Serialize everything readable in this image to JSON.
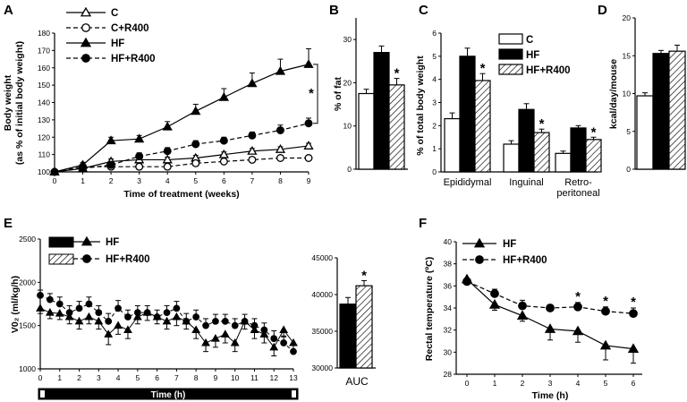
{
  "chart_data": [
    {
      "panel": "A",
      "type": "line",
      "xlabel": "Time of treatment (weeks)",
      "ylabel_line1": "Body weight",
      "ylabel_line2": "(as % of initial body weight)",
      "xlim": [
        0,
        9
      ],
      "ylim": [
        100,
        180
      ],
      "xticks": [
        "0",
        "1",
        "2",
        "3",
        "4",
        "5",
        "6",
        "7",
        "8",
        "9"
      ],
      "yticks": [
        "100",
        "110",
        "120",
        "130",
        "140",
        "150",
        "160",
        "170",
        "180"
      ],
      "x": [
        0,
        1,
        2,
        3,
        4,
        5,
        6,
        7,
        8,
        9
      ],
      "series": [
        {
          "name": "C",
          "marker": "triangle-open",
          "dash": false,
          "values": [
            100,
            102,
            106,
            107,
            107,
            108,
            110,
            112,
            113,
            115
          ],
          "err": [
            0.5,
            1.2,
            1.5,
            1.5,
            1.5,
            1.5,
            1.5,
            1.5,
            1.5,
            1.5
          ]
        },
        {
          "name": "C+R400",
          "marker": "circle-open",
          "dash": true,
          "values": [
            100,
            103,
            103,
            103,
            103,
            105,
            106,
            107,
            108,
            108
          ],
          "err": [
            0.5,
            1.5,
            1.5,
            1.5,
            1.5,
            1.5,
            1.5,
            1.5,
            1.5,
            1.5
          ]
        },
        {
          "name": "HF",
          "marker": "triangle-filled",
          "dash": false,
          "values": [
            100,
            104,
            118,
            119,
            126,
            135,
            143,
            151,
            158,
            162
          ],
          "err": [
            0.5,
            1.5,
            2,
            2,
            3,
            4,
            5,
            6,
            7,
            9
          ]
        },
        {
          "name": "HF+R400",
          "marker": "circle-filled",
          "dash": true,
          "values": [
            100,
            102,
            104,
            109,
            112,
            116,
            118,
            121,
            124,
            128
          ],
          "err": [
            0.5,
            1.5,
            2,
            2,
            2,
            2,
            2,
            2,
            3,
            3
          ]
        }
      ],
      "star": "*"
    },
    {
      "panel": "B",
      "type": "bar",
      "ylabel": "% of fat",
      "ylim": [
        0,
        35
      ],
      "yticks": [
        "0",
        "10",
        "20",
        "30"
      ],
      "series": [
        {
          "name": "C",
          "fill": "white",
          "value": 17.5,
          "err": 1.0
        },
        {
          "name": "HF",
          "fill": "black",
          "value": 27,
          "err": 1.5
        },
        {
          "name": "HF+R400",
          "fill": "hatch",
          "value": 19.5,
          "err": 1.5,
          "star": "*"
        }
      ]
    },
    {
      "panel": "C",
      "type": "bar",
      "ylabel": "% of total body weight",
      "ylim": [
        0,
        6
      ],
      "yticks": [
        "0",
        "1",
        "2",
        "3",
        "4",
        "5",
        "6"
      ],
      "categories": [
        "Epididymal",
        "Inguinal",
        "Retro-\nperitoneal"
      ],
      "series": [
        {
          "name": "C",
          "fill": "white",
          "values": [
            2.3,
            1.2,
            0.8
          ],
          "err": [
            0.25,
            0.15,
            0.1
          ]
        },
        {
          "name": "HF",
          "fill": "black",
          "values": [
            5.0,
            2.7,
            1.9
          ],
          "err": [
            0.35,
            0.25,
            0.1
          ]
        },
        {
          "name": "HF+R400",
          "fill": "hatch",
          "values": [
            3.95,
            1.7,
            1.4
          ],
          "err": [
            0.3,
            0.15,
            0.1
          ]
        }
      ],
      "stars": [
        "*",
        "*",
        "*"
      ]
    },
    {
      "panel": "D",
      "type": "bar",
      "ylabel": "kcal/day/mouse",
      "ylim": [
        0,
        20
      ],
      "yticks": [
        "0",
        "5",
        "10",
        "15",
        "20"
      ],
      "series": [
        {
          "name": "C",
          "fill": "white",
          "value": 9.7,
          "err": 0.4
        },
        {
          "name": "HF",
          "fill": "black",
          "value": 15.3,
          "err": 0.4
        },
        {
          "name": "HF+R400",
          "fill": "hatch",
          "value": 15.6,
          "err": 0.8
        }
      ]
    },
    {
      "panel": "E",
      "type": "scatter",
      "xlabel": "Time (h)",
      "ylabel": "V0₂ (ml/kg/h)",
      "xlim": [
        0,
        13
      ],
      "ylim": [
        1000,
        2500
      ],
      "xticks": [
        "0",
        "1",
        "2",
        "3",
        "4",
        "5",
        "6",
        "7",
        "8",
        "9",
        "10",
        "11",
        "12",
        "13"
      ],
      "yticks": [
        "1000",
        "1500",
        "2000",
        "2500"
      ],
      "x": [
        0,
        0.5,
        1,
        1.5,
        2,
        2.5,
        3,
        3.5,
        4,
        4.5,
        5,
        5.5,
        6,
        6.5,
        7,
        7.5,
        8,
        8.5,
        9,
        9.5,
        10,
        10.5,
        11,
        11.5,
        12,
        12.5,
        13
      ],
      "series": [
        {
          "name": "HF",
          "marker": "triangle-filled",
          "dash": false,
          "values": [
            1700,
            1650,
            1640,
            1600,
            1550,
            1600,
            1550,
            1400,
            1500,
            1450,
            1600,
            1650,
            1600,
            1550,
            1600,
            1550,
            1450,
            1300,
            1350,
            1400,
            1300,
            1550,
            1450,
            1400,
            1250,
            1450,
            1300
          ],
          "err": [
            60,
            70,
            70,
            80,
            90,
            80,
            90,
            120,
            100,
            100,
            80,
            90,
            80,
            90,
            100,
            90,
            100,
            100,
            100,
            100,
            100,
            90,
            100,
            100,
            100,
            80,
            100
          ]
        },
        {
          "name": "HF+R400",
          "marker": "circle-filled",
          "dash": true,
          "values": [
            1850,
            1800,
            1750,
            1650,
            1700,
            1750,
            1650,
            1550,
            1700,
            1600,
            1650,
            1650,
            1600,
            1650,
            1700,
            1550,
            1600,
            1500,
            1550,
            1550,
            1500,
            1550,
            1500,
            1450,
            1350,
            1300,
            1200
          ],
          "err": [
            60,
            70,
            80,
            80,
            80,
            80,
            80,
            90,
            90,
            80,
            80,
            80,
            80,
            80,
            80,
            90,
            80,
            80,
            80,
            80,
            80,
            80,
            80,
            80,
            90,
            80,
            80
          ]
        }
      ],
      "auc": {
        "label": "AUC",
        "ylim": [
          30000,
          45000
        ],
        "yticks": [
          "30000",
          "35000",
          "40000",
          "45000"
        ],
        "series": [
          {
            "name": "HF",
            "fill": "black",
            "value": 38700,
            "err": 900
          },
          {
            "name": "HF+R400",
            "fill": "hatch",
            "value": 41200,
            "err": 700,
            "star": "*"
          }
        ]
      }
    },
    {
      "panel": "F",
      "type": "line",
      "xlabel": "Time (h)",
      "ylabel": "Rectal temperature (ºC)",
      "xlim": [
        0,
        6
      ],
      "ylim": [
        28,
        40
      ],
      "xticks": [
        "0",
        "1",
        "2",
        "3",
        "4",
        "5",
        "6"
      ],
      "yticks": [
        "28",
        "30",
        "32",
        "34",
        "36",
        "38",
        "40"
      ],
      "x": [
        0,
        1,
        2,
        3,
        4,
        5,
        6
      ],
      "series": [
        {
          "name": "HF",
          "marker": "triangle-filled",
          "dash": false,
          "values": [
            36.6,
            34.3,
            33.3,
            32.1,
            31.9,
            30.6,
            30.3
          ],
          "err": [
            0.3,
            0.5,
            0.5,
            1.0,
            1.0,
            1.3,
            1.3
          ]
        },
        {
          "name": "HF+R400",
          "marker": "circle-filled",
          "dash": true,
          "values": [
            36.4,
            35.3,
            34.2,
            34.0,
            34.1,
            33.7,
            33.5
          ],
          "err": [
            0.3,
            0.4,
            0.5,
            0.3,
            0.4,
            0.4,
            0.5
          ]
        }
      ],
      "stars_at_index": [
        4,
        5,
        6
      ]
    }
  ],
  "legend_labels": {
    "a": [
      "C",
      "C+R400",
      "HF",
      "HF+R400"
    ],
    "c": [
      "C",
      "HF",
      "HF+R400"
    ],
    "e": [
      "HF",
      "HF+R400"
    ],
    "f": [
      "HF",
      "HF+R400"
    ]
  }
}
